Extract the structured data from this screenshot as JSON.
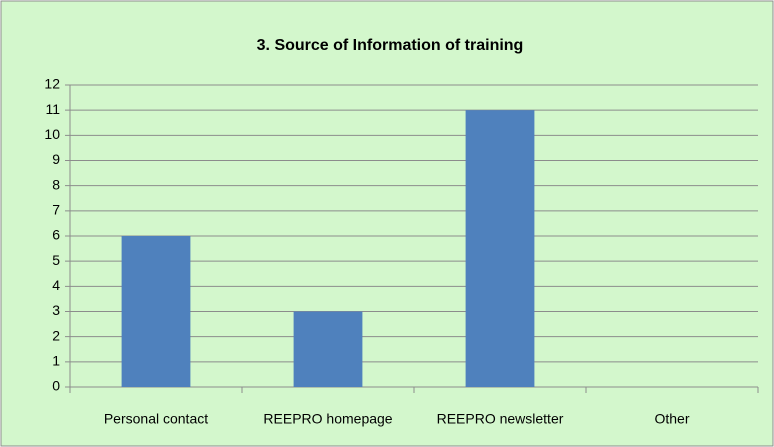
{
  "chart_data": {
    "type": "bar",
    "title": "3. Source of Information of training",
    "categories": [
      "Personal contact",
      "REEPRO homepage",
      "REEPRO newsletter",
      "Other"
    ],
    "values": [
      6,
      3,
      11,
      0
    ],
    "color": "#4f81bd",
    "ylim": [
      0,
      12
    ],
    "yticks": [
      0,
      1,
      2,
      3,
      4,
      5,
      6,
      7,
      8,
      9,
      10,
      11,
      12
    ],
    "grid": true
  }
}
